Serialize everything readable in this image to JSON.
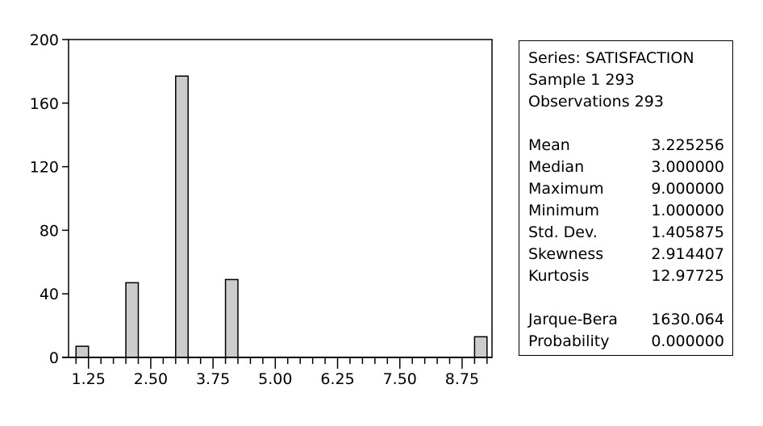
{
  "chart_data": {
    "type": "bar",
    "subtype": "histogram",
    "bins": [
      {
        "from": 1.0,
        "to": 1.25,
        "count": 7
      },
      {
        "from": 2.0,
        "to": 2.25,
        "count": 47
      },
      {
        "from": 3.0,
        "to": 3.25,
        "count": 177
      },
      {
        "from": 4.0,
        "to": 4.25,
        "count": 49
      },
      {
        "from": 9.0,
        "to": 9.25,
        "count": 13
      }
    ],
    "xticks": [
      "1.25",
      "2.50",
      "3.75",
      "5.00",
      "6.25",
      "7.50",
      "8.75"
    ],
    "yticks": [
      "0",
      "40",
      "80",
      "120",
      "160",
      "200"
    ],
    "xlim": [
      0.85,
      9.35
    ],
    "ylim": [
      0,
      200
    ],
    "grid": false,
    "bar_color": "#cccccc"
  },
  "stats": {
    "series": "Series: SATISFACTION",
    "sample": "Sample 1 293",
    "observations": "Observations 293",
    "rows": [
      {
        "label": "Mean",
        "value": "3.225256"
      },
      {
        "label": "Median",
        "value": "3.000000"
      },
      {
        "label": "Maximum",
        "value": "9.000000"
      },
      {
        "label": "Minimum",
        "value": "1.000000"
      },
      {
        "label": "Std. Dev.",
        "value": "1.405875"
      },
      {
        "label": "Skewness",
        "value": "2.914407"
      },
      {
        "label": "Kurtosis",
        "value": "12.97725"
      }
    ],
    "tests": [
      {
        "label": "Jarque-Bera",
        "value": "1630.064"
      },
      {
        "label": "Probability",
        "value": "0.000000"
      }
    ]
  }
}
